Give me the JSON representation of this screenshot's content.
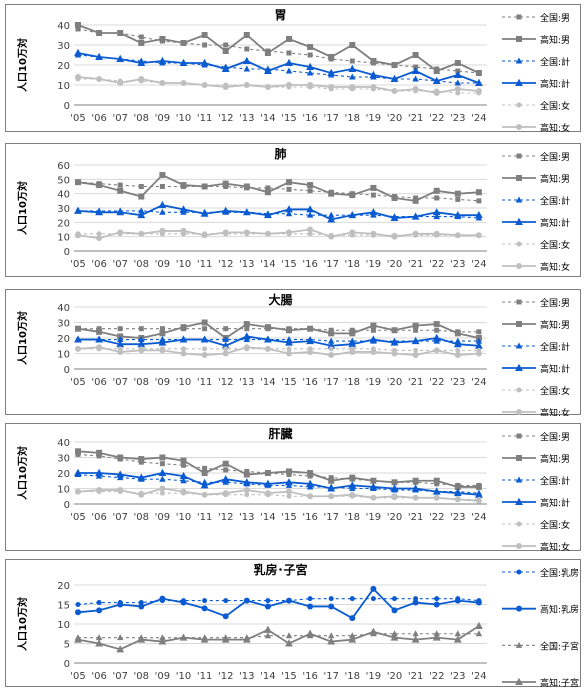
{
  "years": [
    "'05",
    "'06",
    "'07",
    "'08",
    "'09",
    "'10",
    "'11",
    "'12",
    "'13",
    "'14",
    "'15",
    "'16",
    "'17",
    "'18",
    "'19",
    "'20",
    "'21",
    "'22",
    "'23",
    "'24"
  ],
  "colors": {
    "gray": "#7f7f7f",
    "lightgray": "#bfbfbf",
    "blue": "#0a5bd1"
  },
  "chart_data": [
    {
      "type": "line",
      "title": "胃",
      "ylabel": "人口10万対",
      "ylim": [
        0,
        40
      ],
      "yticks": [
        0,
        10,
        20,
        30,
        40
      ],
      "legend_position": "right",
      "series": [
        {
          "name": "全国:男",
          "style": "dash-gray-square",
          "values": [
            38,
            36,
            36,
            34,
            32,
            31,
            30,
            30,
            28,
            27,
            26,
            25,
            23,
            22,
            21,
            20,
            19,
            18,
            17,
            16
          ]
        },
        {
          "name": "高知:男",
          "style": "solid-gray-square",
          "values": [
            40,
            36,
            36,
            31,
            33,
            31,
            35,
            27,
            35,
            26,
            33,
            29,
            24,
            30,
            22,
            20,
            25,
            17,
            21,
            16
          ]
        },
        {
          "name": "全国:計",
          "style": "dash-blue-triangle",
          "values": [
            25,
            24,
            23,
            22,
            21,
            21,
            20,
            19,
            18,
            18,
            17,
            16,
            15,
            14,
            14,
            13,
            13,
            12,
            11,
            11
          ]
        },
        {
          "name": "高知:計",
          "style": "solid-blue-triangle",
          "values": [
            26,
            24,
            23,
            21,
            22,
            21,
            21,
            18,
            22,
            17,
            21,
            19,
            16,
            18,
            15,
            13,
            17,
            12,
            15,
            11
          ]
        },
        {
          "name": "全国:女",
          "style": "dash-lightgray-circle",
          "values": [
            13,
            13,
            12,
            12,
            11,
            11,
            10,
            10,
            10,
            9,
            9,
            9,
            8,
            8,
            8,
            7,
            7,
            7,
            6,
            6
          ]
        },
        {
          "name": "高知:女",
          "style": "solid-lightgray-circle",
          "values": [
            14,
            13,
            11,
            13,
            11,
            11,
            10,
            9,
            10,
            9,
            10,
            10,
            9,
            9,
            9,
            7,
            8,
            6,
            8,
            7
          ]
        }
      ]
    },
    {
      "type": "line",
      "title": "肺",
      "ylabel": "人口10万対",
      "ylim": [
        0,
        60
      ],
      "yticks": [
        0,
        10,
        20,
        30,
        40,
        50,
        60
      ],
      "legend_position": "right",
      "series": [
        {
          "name": "全国:男",
          "style": "dash-gray-square",
          "values": [
            48,
            47,
            46,
            45,
            45,
            45,
            45,
            45,
            44,
            44,
            43,
            42,
            41,
            40,
            39,
            38,
            37,
            37,
            36,
            35
          ]
        },
        {
          "name": "高知:男",
          "style": "solid-gray-square",
          "values": [
            48,
            46,
            42,
            38,
            53,
            46,
            45,
            47,
            45,
            41,
            48,
            46,
            40,
            39,
            44,
            37,
            35,
            42,
            40,
            41
          ]
        },
        {
          "name": "全国:計",
          "style": "dash-blue-triangle",
          "values": [
            28,
            28,
            28,
            28,
            27,
            27,
            27,
            27,
            27,
            26,
            26,
            25,
            25,
            25,
            25,
            24,
            24,
            24,
            24,
            23
          ]
        },
        {
          "name": "高知:計",
          "style": "solid-blue-triangle",
          "values": [
            28,
            27,
            27,
            25,
            32,
            29,
            26,
            28,
            27,
            25,
            29,
            29,
            22,
            25,
            27,
            23,
            24,
            27,
            25,
            25
          ]
        },
        {
          "name": "全国:女",
          "style": "dash-lightgray-circle",
          "values": [
            12,
            12,
            12,
            12,
            12,
            12,
            12,
            12,
            12,
            12,
            12,
            12,
            11,
            11,
            11,
            11,
            11,
            11,
            11,
            11
          ]
        },
        {
          "name": "高知:女",
          "style": "solid-lightgray-circle",
          "values": [
            11,
            9,
            13,
            12,
            14,
            14,
            11,
            13,
            13,
            12,
            13,
            15,
            10,
            13,
            12,
            10,
            12,
            12,
            11,
            11
          ]
        }
      ]
    },
    {
      "type": "line",
      "title": "大腸",
      "ylabel": "人口10万対",
      "ylim": [
        0,
        40
      ],
      "yticks": [
        0,
        10,
        20,
        30,
        40
      ],
      "legend_position": "right",
      "series": [
        {
          "name": "全国:男",
          "style": "dash-gray-square",
          "values": [
            26,
            26,
            26,
            26,
            26,
            26,
            26,
            26,
            26,
            26,
            26,
            26,
            25,
            25,
            25,
            25,
            25,
            25,
            24,
            24
          ]
        },
        {
          "name": "高知:男",
          "style": "solid-gray-square",
          "values": [
            26,
            24,
            21,
            20,
            23,
            27,
            30,
            20,
            29,
            27,
            25,
            26,
            23,
            23,
            28,
            25,
            28,
            29,
            23,
            20
          ]
        },
        {
          "name": "全国:計",
          "style": "dash-blue-triangle",
          "values": [
            19,
            19,
            19,
            19,
            19,
            19,
            19,
            19,
            19,
            19,
            19,
            19,
            18,
            18,
            18,
            18,
            18,
            18,
            18,
            18
          ]
        },
        {
          "name": "高知:計",
          "style": "solid-blue-triangle",
          "values": [
            19,
            19,
            16,
            16,
            17,
            19,
            19,
            15,
            21,
            19,
            17,
            18,
            15,
            16,
            19,
            17,
            18,
            20,
            16,
            15
          ]
        },
        {
          "name": "全国:女",
          "style": "dash-lightgray-circle",
          "values": [
            13,
            13,
            13,
            13,
            13,
            13,
            13,
            13,
            13,
            13,
            13,
            13,
            13,
            13,
            13,
            12,
            12,
            12,
            12,
            12
          ]
        },
        {
          "name": "高知:女",
          "style": "solid-lightgray-circle",
          "values": [
            13,
            14,
            11,
            12,
            12,
            10,
            9,
            10,
            14,
            13,
            10,
            11,
            9,
            11,
            11,
            10,
            9,
            12,
            9,
            10
          ]
        }
      ]
    },
    {
      "type": "line",
      "title": "肝臓",
      "ylabel": "人口10万対",
      "ylim": [
        0,
        40
      ],
      "yticks": [
        0,
        10,
        20,
        30,
        40
      ],
      "legend_position": "right",
      "series": [
        {
          "name": "全国:男",
          "style": "dash-gray-square",
          "values": [
            32,
            31,
            29,
            27,
            26,
            25,
            23,
            22,
            21,
            20,
            19,
            18,
            17,
            16,
            15,
            14,
            14,
            13,
            12,
            12
          ]
        },
        {
          "name": "高知:男",
          "style": "solid-gray-square",
          "values": [
            34,
            33,
            30,
            29,
            30,
            28,
            20,
            26,
            19,
            20,
            21,
            20,
            15,
            17,
            15,
            14,
            15,
            15,
            11,
            11
          ]
        },
        {
          "name": "全国:計",
          "style": "dash-blue-triangle",
          "values": [
            19,
            18,
            17,
            16,
            16,
            15,
            14,
            14,
            13,
            12,
            12,
            11,
            11,
            10,
            10,
            9,
            9,
            8,
            8,
            7
          ]
        },
        {
          "name": "高知:計",
          "style": "solid-blue-triangle",
          "values": [
            20,
            20,
            19,
            17,
            20,
            18,
            12,
            16,
            14,
            13,
            14,
            13,
            10,
            12,
            11,
            10,
            10,
            8,
            7,
            6
          ]
        },
        {
          "name": "全国:女",
          "style": "dash-lightgray-circle",
          "values": [
            8,
            8,
            8,
            7,
            7,
            7,
            6,
            6,
            6,
            6,
            5,
            5,
            5,
            5,
            4,
            4,
            4,
            4,
            3,
            3
          ]
        },
        {
          "name": "高知:女",
          "style": "solid-lightgray-circle",
          "values": [
            8,
            9,
            9,
            6,
            10,
            8,
            6,
            7,
            9,
            7,
            8,
            5,
            5,
            6,
            4,
            5,
            4,
            4,
            3,
            2
          ]
        }
      ]
    },
    {
      "type": "line",
      "title": "乳房･子宮",
      "ylabel": "人口10万対",
      "ylim": [
        0,
        20
      ],
      "yticks": [
        0,
        5,
        10,
        15,
        20
      ],
      "legend_position": "right",
      "series": [
        {
          "name": "全国:乳房",
          "style": "dash-blue-circle",
          "values": [
            15,
            15.5,
            15.5,
            15.5,
            16,
            16,
            16,
            16,
            16,
            16,
            16,
            16.5,
            16.5,
            16.5,
            16.5,
            16.5,
            16.5,
            16.5,
            16.5,
            16
          ]
        },
        {
          "name": "高知:乳房",
          "style": "solid-blue-circle",
          "values": [
            13,
            13.5,
            15,
            14.5,
            16.5,
            15.5,
            14,
            12,
            16,
            14.5,
            16,
            14.5,
            14.5,
            11.5,
            19,
            13.5,
            15.5,
            15,
            16,
            15.5
          ]
        },
        {
          "name": "全国:子宮",
          "style": "dash-gray-triangle",
          "values": [
            6.5,
            6.5,
            6.5,
            6.5,
            6.5,
            6.5,
            6.5,
            6.5,
            6.5,
            7,
            7,
            7,
            7,
            7,
            7.5,
            7.5,
            7.5,
            7.5,
            7.5,
            7.5
          ]
        },
        {
          "name": "高知:子宮",
          "style": "solid-gray-triangle",
          "values": [
            6,
            5,
            3.5,
            6,
            5.5,
            6.5,
            6,
            6,
            6,
            8.5,
            5,
            7.5,
            5.5,
            6,
            8,
            6.5,
            6,
            6.5,
            6,
            9.5
          ]
        }
      ]
    }
  ]
}
